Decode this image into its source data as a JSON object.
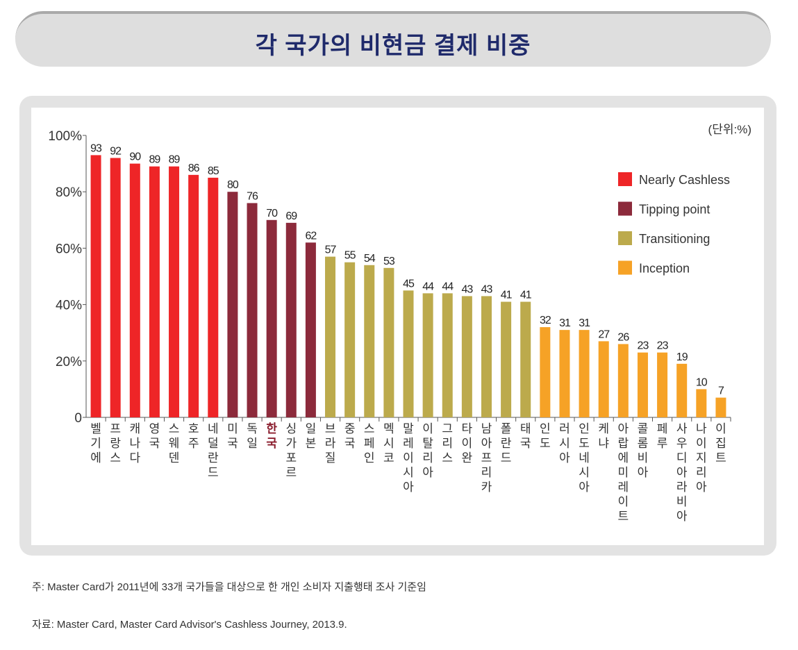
{
  "title": "각 국가의 비현금 결제 비중",
  "chart_data": {
    "type": "bar",
    "unit_label": "(단위:%)",
    "ylim": [
      0,
      100
    ],
    "yticks": [
      "0",
      "20%",
      "40%",
      "60%",
      "80%",
      "100%"
    ],
    "ytick_values": [
      0,
      20,
      40,
      60,
      80,
      100
    ],
    "categories": [
      "벨기에",
      "프랑스",
      "캐나다",
      "영국",
      "스웨덴",
      "호주",
      "네덜란드",
      "미국",
      "독일",
      "한국",
      "싱가포르",
      "일본",
      "브라질",
      "중국",
      "스페인",
      "멕시코",
      "말레이시아",
      "이탈리아",
      "그리스",
      "타이완",
      "남아프리카",
      "폴란드",
      "태국",
      "인도",
      "러시아",
      "인도네시아",
      "케냐",
      "아랍에미레이트",
      "콜롬비아",
      "페루",
      "사우디아라비아",
      "나이지리아",
      "이집트"
    ],
    "values": [
      93,
      92,
      90,
      89,
      89,
      86,
      85,
      80,
      76,
      70,
      69,
      62,
      57,
      55,
      54,
      53,
      45,
      44,
      44,
      43,
      43,
      41,
      41,
      32,
      31,
      31,
      27,
      26,
      23,
      23,
      19,
      10,
      7
    ],
    "groups": [
      0,
      0,
      0,
      0,
      0,
      0,
      0,
      1,
      1,
      1,
      1,
      1,
      2,
      2,
      2,
      2,
      2,
      2,
      2,
      2,
      2,
      2,
      2,
      3,
      3,
      3,
      3,
      3,
      3,
      3,
      3,
      3,
      3
    ],
    "highlight_category": "한국",
    "highlight_color": "#8b1e2e",
    "legend": [
      {
        "name": "Nearly Cashless",
        "color": "#ee2527"
      },
      {
        "name": "Tipping point",
        "color": "#8c2a3b"
      },
      {
        "name": "Transitioning",
        "color": "#bcaa4c"
      },
      {
        "name": "Inception",
        "color": "#f6a226"
      }
    ],
    "legend_position": "top-right",
    "grid": false
  },
  "notes": {
    "note": "주:  Master Card가 2011년에 33개 국가들을 대상으로 한 개인 소비자 지출행태 조사 기준임",
    "source": "자료:  Master Card, Master Card Advisor's Cashless Journey, 2013.9."
  }
}
